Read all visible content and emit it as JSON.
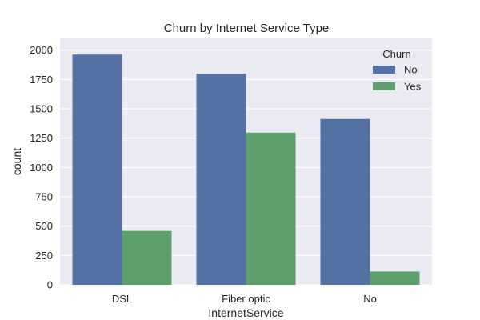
{
  "chart_data": {
    "type": "bar",
    "title": "Churn by Internet Service Type",
    "xlabel": "InternetService",
    "ylabel": "count",
    "categories": [
      "DSL",
      "Fiber optic",
      "No"
    ],
    "series": [
      {
        "name": "No",
        "values": [
          1962,
          1799,
          1413
        ],
        "color": "#5471a4"
      },
      {
        "name": "Yes",
        "values": [
          459,
          1297,
          113
        ],
        "color": "#5c9f6b"
      }
    ],
    "ylim": [
      0,
      2100
    ],
    "yticks": [
      0,
      250,
      500,
      750,
      1000,
      1250,
      1500,
      1750,
      2000
    ],
    "ytick_labels": [
      "0",
      "250",
      "500",
      "750",
      "1000",
      "1250",
      "1500",
      "1750",
      "2000"
    ],
    "legend": {
      "title": "Churn",
      "placement": "upper right"
    },
    "grid": true,
    "background": "#eaeaf2"
  }
}
